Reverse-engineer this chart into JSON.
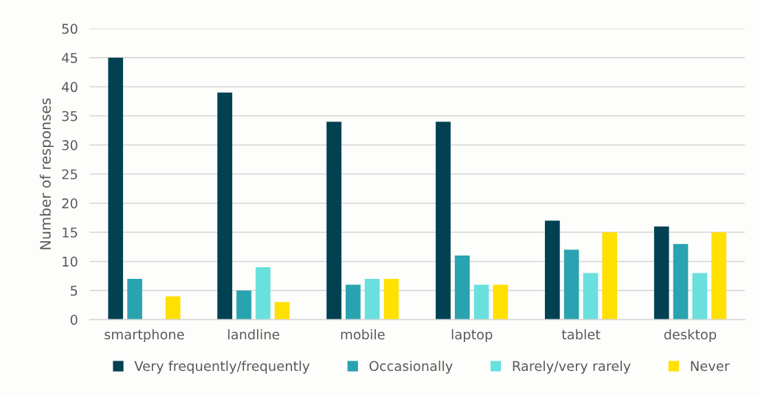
{
  "chart_data": {
    "type": "bar",
    "ylabel": "Number of responses",
    "categories": [
      "smartphone",
      "landline",
      "mobile",
      "laptop",
      "tablet",
      "desktop"
    ],
    "series": [
      {
        "name": "Very frequently/frequently",
        "color": "#024152",
        "values": [
          45,
          39,
          34,
          34,
          17,
          16
        ]
      },
      {
        "name": "Occasionally",
        "color": "#2aa3b0",
        "values": [
          7,
          5,
          6,
          11,
          12,
          13
        ]
      },
      {
        "name": "Rarely/very rarely",
        "color": "#6ae0de",
        "values": [
          null,
          9,
          7,
          6,
          8,
          8
        ]
      },
      {
        "name": "Never",
        "color": "#ffe000",
        "values": [
          4,
          3,
          7,
          6,
          15,
          15
        ]
      }
    ],
    "ylim": [
      0,
      50
    ],
    "yticks": [
      0,
      5,
      10,
      15,
      20,
      25,
      30,
      35,
      40,
      45,
      50
    ],
    "grid": "y",
    "legend": "bottom"
  }
}
